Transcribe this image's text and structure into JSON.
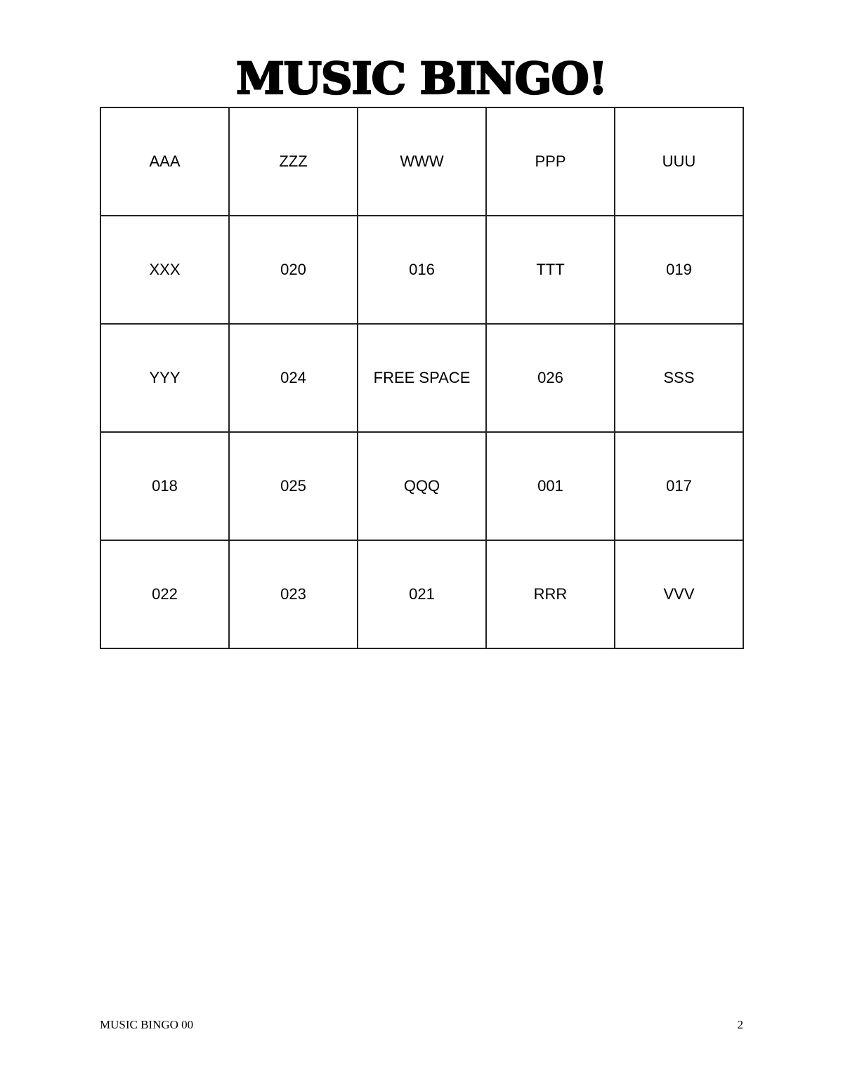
{
  "title": "MUSIC BINGO!",
  "grid": [
    [
      "AAA",
      "ZZZ",
      "WWW",
      "PPP",
      "UUU"
    ],
    [
      "XXX",
      "020",
      "016",
      "TTT",
      "019"
    ],
    [
      "YYY",
      "024",
      "FREE SPACE",
      "026",
      "SSS"
    ],
    [
      "018",
      "025",
      "QQQ",
      "001",
      "017"
    ],
    [
      "022",
      "023",
      "021",
      "RRR",
      "VVV"
    ]
  ],
  "footer": {
    "left": "MUSIC BINGO 00",
    "page_number": "2"
  }
}
